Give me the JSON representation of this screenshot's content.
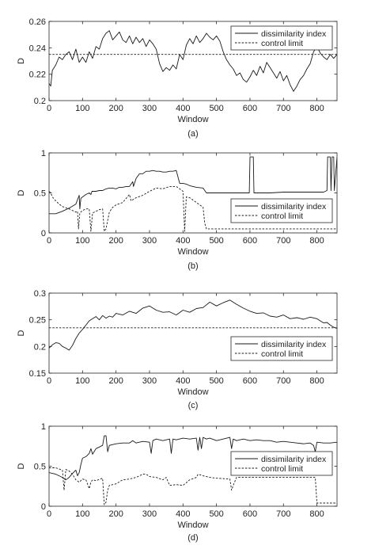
{
  "chart_data": [
    {
      "type": "line",
      "caption": "(a)",
      "xlabel": "Window",
      "ylabel": "D",
      "xlim": [
        0,
        860
      ],
      "ylim": [
        0.2,
        0.26
      ],
      "xticks": [
        0,
        100,
        200,
        300,
        400,
        500,
        600,
        700,
        800
      ],
      "yticks": [
        0.2,
        0.22,
        0.24,
        0.26
      ],
      "ytick_labels": [
        "0.2",
        "0.22",
        "0.24",
        "0.26"
      ],
      "legend": {
        "position": "top-right",
        "entries": [
          "dissimilarity index",
          "control limit"
        ]
      },
      "series": [
        {
          "name": "dissimilarity index",
          "style": "solid",
          "x": [
            0,
            5,
            10,
            20,
            30,
            40,
            50,
            60,
            70,
            80,
            90,
            100,
            110,
            120,
            130,
            140,
            150,
            160,
            170,
            180,
            190,
            200,
            210,
            220,
            230,
            240,
            250,
            260,
            270,
            280,
            290,
            300,
            310,
            320,
            330,
            340,
            350,
            360,
            370,
            380,
            390,
            400,
            410,
            420,
            430,
            440,
            450,
            460,
            470,
            480,
            490,
            500,
            510,
            520,
            530,
            540,
            550,
            560,
            570,
            580,
            590,
            600,
            610,
            620,
            630,
            640,
            650,
            660,
            670,
            680,
            690,
            700,
            710,
            720,
            730,
            740,
            750,
            760,
            770,
            780,
            790,
            800,
            810,
            820,
            830,
            840,
            850,
            860
          ],
          "y": [
            0.213,
            0.211,
            0.223,
            0.227,
            0.233,
            0.231,
            0.235,
            0.237,
            0.231,
            0.239,
            0.229,
            0.233,
            0.229,
            0.237,
            0.232,
            0.241,
            0.239,
            0.247,
            0.251,
            0.253,
            0.246,
            0.249,
            0.252,
            0.246,
            0.244,
            0.249,
            0.243,
            0.248,
            0.244,
            0.247,
            0.241,
            0.246,
            0.243,
            0.239,
            0.228,
            0.222,
            0.225,
            0.223,
            0.227,
            0.224,
            0.235,
            0.231,
            0.242,
            0.247,
            0.243,
            0.249,
            0.244,
            0.247,
            0.251,
            0.248,
            0.246,
            0.249,
            0.245,
            0.237,
            0.231,
            0.227,
            0.224,
            0.219,
            0.221,
            0.216,
            0.214,
            0.218,
            0.223,
            0.219,
            0.226,
            0.221,
            0.229,
            0.225,
            0.221,
            0.217,
            0.222,
            0.215,
            0.219,
            0.212,
            0.207,
            0.211,
            0.216,
            0.219,
            0.224,
            0.228,
            0.237,
            0.241,
            0.236,
            0.233,
            0.231,
            0.235,
            0.232,
            0.235
          ]
        },
        {
          "name": "control limit",
          "style": "dashed",
          "x": [
            0,
            860
          ],
          "y": [
            0.235,
            0.235
          ]
        }
      ]
    },
    {
      "type": "line",
      "caption": "(b)",
      "xlabel": "Window",
      "ylabel": "D",
      "xlim": [
        0,
        860
      ],
      "ylim": [
        0,
        1
      ],
      "xticks": [
        0,
        100,
        200,
        300,
        400,
        500,
        600,
        700,
        800
      ],
      "yticks": [
        0,
        0.5,
        1
      ],
      "ytick_labels": [
        "0",
        "0.5",
        "1"
      ],
      "legend": {
        "position": "middle-right",
        "entries": [
          "dissimilarity index",
          "control limit"
        ]
      },
      "series": [
        {
          "name": "dissimilarity index",
          "style": "solid",
          "x": [
            0,
            20,
            40,
            60,
            80,
            90,
            92,
            95,
            100,
            110,
            120,
            125,
            128,
            140,
            150,
            160,
            170,
            180,
            190,
            200,
            210,
            220,
            230,
            240,
            250,
            252,
            260,
            270,
            280,
            290,
            300,
            310,
            320,
            330,
            340,
            350,
            360,
            370,
            380,
            390,
            400,
            410,
            420,
            440,
            460,
            470,
            480,
            500,
            520,
            540,
            560,
            580,
            598,
            600,
            610,
            612,
            630,
            660,
            700,
            740,
            780,
            800,
            820,
            830,
            832,
            840,
            842,
            845,
            850,
            852,
            860
          ],
          "y": [
            0.24,
            0.24,
            0.27,
            0.31,
            0.36,
            0.47,
            0.3,
            0.43,
            0.45,
            0.48,
            0.5,
            0.48,
            0.52,
            0.52,
            0.53,
            0.53,
            0.55,
            0.56,
            0.56,
            0.55,
            0.57,
            0.57,
            0.58,
            0.58,
            0.64,
            0.58,
            0.68,
            0.74,
            0.74,
            0.77,
            0.77,
            0.78,
            0.77,
            0.77,
            0.76,
            0.76,
            0.77,
            0.77,
            0.78,
            0.62,
            0.62,
            0.61,
            0.59,
            0.57,
            0.56,
            0.5,
            0.5,
            0.5,
            0.5,
            0.5,
            0.5,
            0.5,
            0.5,
            0.95,
            0.95,
            0.5,
            0.5,
            0.5,
            0.51,
            0.51,
            0.51,
            0.51,
            0.51,
            0.53,
            0.95,
            0.95,
            0.53,
            0.95,
            0.95,
            0.53,
            0.95
          ]
        },
        {
          "name": "control limit",
          "style": "dashed",
          "x": [
            0,
            5,
            10,
            20,
            30,
            40,
            60,
            80,
            85,
            88,
            92,
            100,
            110,
            120,
            125,
            130,
            150,
            160,
            165,
            170,
            180,
            190,
            200,
            220,
            240,
            245,
            260,
            280,
            300,
            320,
            340,
            360,
            380,
            390,
            400,
            405,
            410,
            420,
            440,
            460,
            465,
            470,
            480,
            500,
            860
          ],
          "y": [
            0.52,
            0.5,
            0.45,
            0.4,
            0.36,
            0.33,
            0.3,
            0.26,
            0.27,
            0.05,
            0.25,
            0.28,
            0.3,
            0.3,
            0.02,
            0.25,
            0.29,
            0.3,
            0.02,
            0.05,
            0.26,
            0.32,
            0.35,
            0.38,
            0.48,
            0.4,
            0.44,
            0.47,
            0.52,
            0.56,
            0.55,
            0.58,
            0.58,
            0.55,
            0.52,
            0.02,
            0.45,
            0.44,
            0.38,
            0.32,
            0.12,
            0.05,
            0.05,
            0.05,
            0.05
          ]
        }
      ]
    },
    {
      "type": "line",
      "caption": "(c)",
      "xlabel": "Window",
      "ylabel": "D",
      "xlim": [
        0,
        860
      ],
      "ylim": [
        0.15,
        0.3
      ],
      "xticks": [
        0,
        100,
        200,
        300,
        400,
        500,
        600,
        700,
        800
      ],
      "yticks": [
        0.15,
        0.2,
        0.25,
        0.3
      ],
      "ytick_labels": [
        "0.15",
        "0.2",
        "0.25",
        "0.3"
      ],
      "legend": {
        "position": "bottom-right",
        "entries": [
          "dissimilarity index",
          "control limit"
        ]
      },
      "series": [
        {
          "name": "dissimilarity index",
          "style": "solid",
          "x": [
            0,
            10,
            20,
            30,
            40,
            50,
            60,
            70,
            80,
            90,
            100,
            110,
            120,
            130,
            140,
            150,
            160,
            170,
            180,
            190,
            200,
            220,
            240,
            260,
            280,
            300,
            320,
            340,
            360,
            380,
            400,
            420,
            440,
            460,
            480,
            500,
            520,
            540,
            560,
            580,
            600,
            620,
            640,
            660,
            680,
            700,
            720,
            740,
            760,
            780,
            800,
            820,
            830,
            840,
            850,
            860
          ],
          "y": [
            0.197,
            0.203,
            0.207,
            0.206,
            0.2,
            0.197,
            0.193,
            0.202,
            0.215,
            0.225,
            0.232,
            0.24,
            0.248,
            0.252,
            0.256,
            0.25,
            0.258,
            0.253,
            0.257,
            0.255,
            0.262,
            0.259,
            0.266,
            0.262,
            0.272,
            0.276,
            0.268,
            0.264,
            0.265,
            0.259,
            0.268,
            0.264,
            0.271,
            0.273,
            0.283,
            0.276,
            0.282,
            0.287,
            0.279,
            0.272,
            0.266,
            0.262,
            0.263,
            0.257,
            0.255,
            0.259,
            0.252,
            0.254,
            0.251,
            0.255,
            0.252,
            0.244,
            0.245,
            0.24,
            0.236,
            0.234
          ]
        },
        {
          "name": "control limit",
          "style": "dashed",
          "x": [
            0,
            860
          ],
          "y": [
            0.235,
            0.235
          ]
        }
      ]
    },
    {
      "type": "line",
      "caption": "(d)",
      "xlabel": "Window",
      "ylabel": "D",
      "xlim": [
        0,
        860
      ],
      "ylim": [
        0,
        1
      ],
      "xticks": [
        0,
        100,
        200,
        300,
        400,
        500,
        600,
        700,
        800
      ],
      "yticks": [
        0,
        0.5,
        1
      ],
      "ytick_labels": [
        "0",
        "0.5",
        "1"
      ],
      "legend": {
        "position": "middle-right",
        "entries": [
          "dissimilarity index",
          "control limit"
        ]
      },
      "series": [
        {
          "name": "dissimilarity index",
          "style": "solid",
          "x": [
            0,
            20,
            40,
            50,
            60,
            70,
            80,
            85,
            90,
            95,
            100,
            110,
            120,
            125,
            130,
            140,
            150,
            160,
            165,
            170,
            175,
            180,
            200,
            220,
            240,
            250,
            260,
            280,
            300,
            305,
            310,
            320,
            340,
            360,
            365,
            370,
            380,
            400,
            420,
            440,
            445,
            450,
            455,
            460,
            470,
            480,
            500,
            520,
            540,
            545,
            550,
            560,
            580,
            600,
            620,
            640,
            660,
            680,
            700,
            720,
            740,
            760,
            780,
            790,
            795,
            800,
            820,
            840,
            860
          ],
          "y": [
            0.42,
            0.4,
            0.36,
            0.33,
            0.36,
            0.41,
            0.45,
            0.38,
            0.42,
            0.52,
            0.6,
            0.62,
            0.66,
            0.72,
            0.65,
            0.72,
            0.74,
            0.76,
            0.88,
            0.88,
            0.68,
            0.76,
            0.78,
            0.79,
            0.79,
            0.82,
            0.79,
            0.81,
            0.8,
            0.66,
            0.82,
            0.84,
            0.82,
            0.84,
            0.66,
            0.84,
            0.83,
            0.85,
            0.84,
            0.85,
            0.7,
            0.86,
            0.72,
            0.86,
            0.84,
            0.85,
            0.82,
            0.84,
            0.86,
            0.72,
            0.84,
            0.82,
            0.84,
            0.82,
            0.83,
            0.82,
            0.82,
            0.8,
            0.81,
            0.8,
            0.79,
            0.78,
            0.79,
            0.76,
            0.68,
            0.8,
            0.79,
            0.79,
            0.8
          ]
        },
        {
          "name": "control limit",
          "style": "dashed",
          "x": [
            0,
            20,
            40,
            45,
            50,
            60,
            70,
            80,
            90,
            100,
            110,
            120,
            125,
            130,
            140,
            160,
            165,
            170,
            175,
            180,
            200,
            220,
            240,
            260,
            280,
            290,
            300,
            320,
            340,
            350,
            360,
            380,
            400,
            420,
            440,
            445,
            460,
            480,
            500,
            540,
            545,
            550,
            560,
            580,
            600,
            620,
            640,
            660,
            680,
            700,
            720,
            740,
            760,
            780,
            790,
            795,
            800,
            860
          ],
          "y": [
            0.48,
            0.48,
            0.45,
            0.2,
            0.46,
            0.44,
            0.4,
            0.33,
            0.3,
            0.34,
            0.33,
            0.22,
            0.3,
            0.33,
            0.32,
            0.35,
            0.02,
            0.05,
            0.2,
            0.26,
            0.28,
            0.33,
            0.34,
            0.36,
            0.4,
            0.4,
            0.37,
            0.36,
            0.33,
            0.36,
            0.26,
            0.27,
            0.26,
            0.33,
            0.36,
            0.4,
            0.38,
            0.36,
            0.35,
            0.34,
            0.2,
            0.26,
            0.36,
            0.36,
            0.36,
            0.36,
            0.36,
            0.36,
            0.36,
            0.36,
            0.36,
            0.36,
            0.36,
            0.36,
            0.36,
            0.36,
            0.04,
            0.04
          ]
        }
      ]
    }
  ]
}
